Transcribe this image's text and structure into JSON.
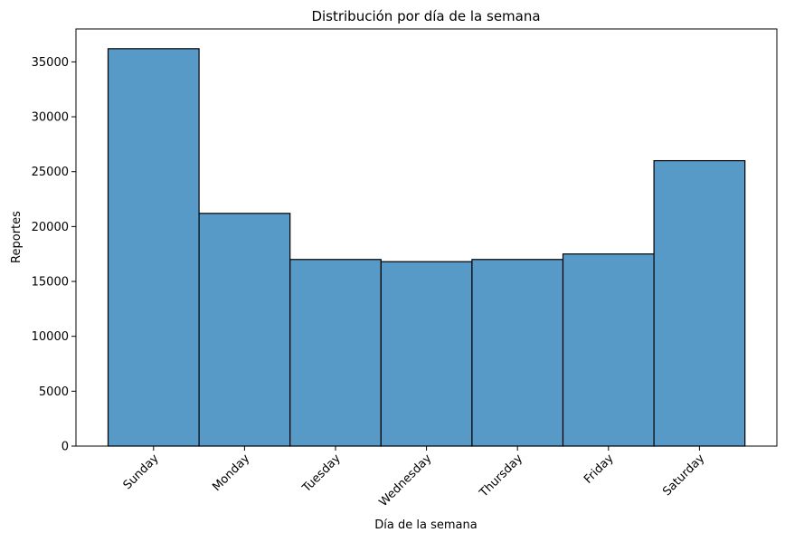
{
  "chart_data": {
    "type": "bar",
    "title": "Distribución por día de la semana",
    "xlabel": "Día de la semana",
    "ylabel": "Reportes",
    "categories": [
      "Sunday",
      "Monday",
      "Tuesday",
      "Wednesday",
      "Thursday",
      "Friday",
      "Saturday"
    ],
    "values": [
      36200,
      21200,
      17000,
      16800,
      17000,
      17500,
      26000
    ],
    "ylim": [
      0,
      38000
    ],
    "yticks": [
      0,
      5000,
      10000,
      15000,
      20000,
      25000,
      30000,
      35000
    ],
    "ytick_labels": [
      "0",
      "5000",
      "10000",
      "15000",
      "20000",
      "25000",
      "30000",
      "35000"
    ],
    "grid": false,
    "bar_color": "#5799c7",
    "edge_color": "#000000"
  }
}
